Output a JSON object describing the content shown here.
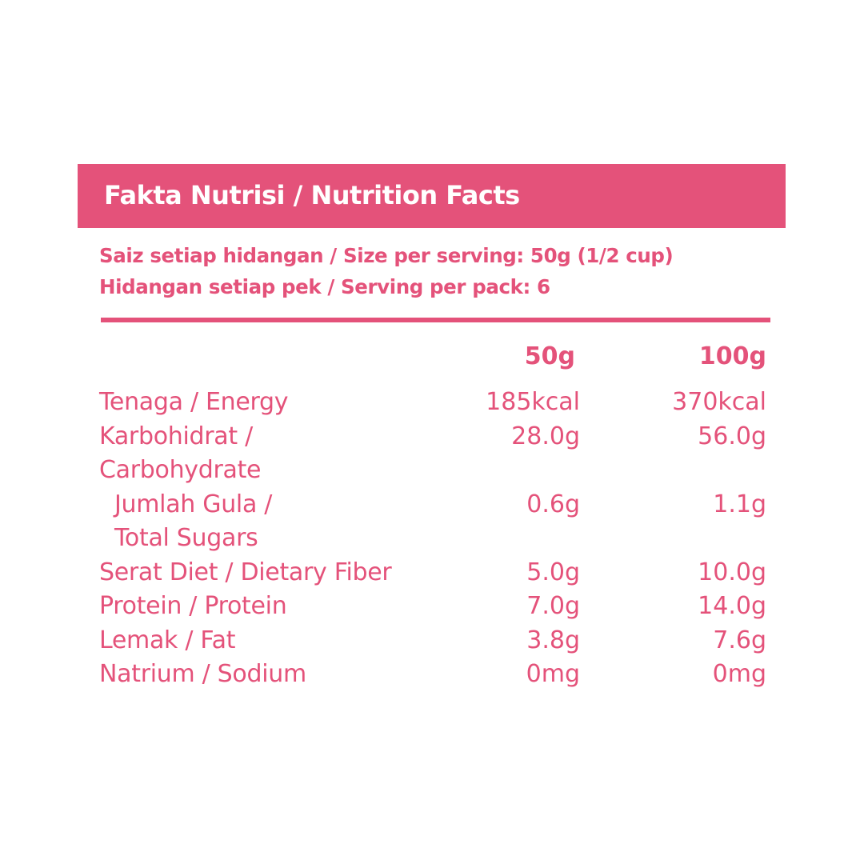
{
  "title": "Fakta Nutrisi / Nutrition Facts",
  "serving_size": "Saiz setiap hidangan / Size per serving: 50g (1/2 cup)",
  "servings_per_pack": "Hidangan setiap pek / Serving per pack: 6",
  "columns": [
    "50g",
    "100g"
  ],
  "accent_color": "#e4527a",
  "rows": [
    {
      "label": [
        "Tenaga / Energy"
      ],
      "v50": "185kcal",
      "v100": "370kcal"
    },
    {
      "label": [
        "Karbohidrat /",
        "Carbohydrate"
      ],
      "v50": "28.0g",
      "v100": "56.0g"
    },
    {
      "label": [
        "Jumlah Gula /",
        "Total Sugars"
      ],
      "v50": "0.6g",
      "v100": "1.1g",
      "sub": true
    },
    {
      "label": [
        "Serat Diet / Dietary Fiber"
      ],
      "v50": "5.0g",
      "v100": "10.0g"
    },
    {
      "label": [
        "Protein / Protein"
      ],
      "v50": "7.0g",
      "v100": "14.0g"
    },
    {
      "label": [
        "Lemak / Fat"
      ],
      "v50": "3.8g",
      "v100": "7.6g"
    },
    {
      "label": [
        "Natrium / Sodium"
      ],
      "v50": "0mg",
      "v100": "0mg"
    }
  ]
}
